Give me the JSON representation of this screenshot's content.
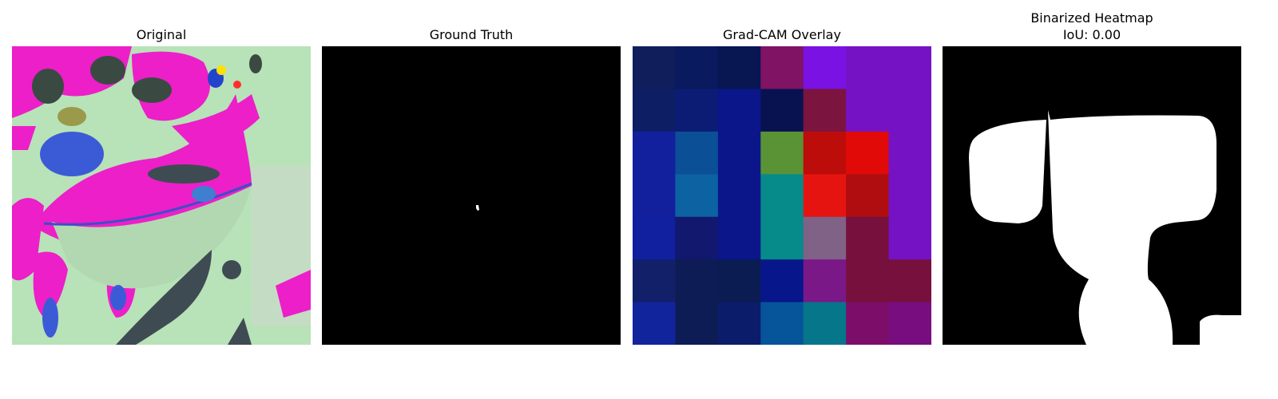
{
  "panels": [
    {
      "title": "Original"
    },
    {
      "title": "Ground Truth"
    },
    {
      "title": "Grad-CAM Overlay"
    },
    {
      "title": "Binarized Heatmap",
      "subtitle": "IoU: 0.00"
    }
  ],
  "colors": {
    "background": "#ffffff",
    "mask_background": "#000000",
    "mask_foreground": "#ffffff",
    "leaf_pink": "#ec1fc8",
    "leaf_pale_green": "#b8e2b8",
    "shadow_dark": "#3f4b52"
  },
  "gradcam_grid": [
    [
      "#101e5c",
      "#0a1a5e",
      "#081652",
      "#801363",
      "#7a12e3",
      "#7512c4",
      "#7512c4"
    ],
    [
      "#0e1e64",
      "#0c1c75",
      "#0a168a",
      "#081250",
      "#7c1440",
      "#7512c4",
      "#7512c4"
    ],
    [
      "#12209e",
      "#0b4f96",
      "#0a168a",
      "#5a9236",
      "#bc0d0a",
      "#e20a08",
      "#7512c4"
    ],
    [
      "#12209e",
      "#0d62a2",
      "#0a168a",
      "#078a8a",
      "#e61410",
      "#b00d10",
      "#7512c4"
    ],
    [
      "#10209e",
      "#12186e",
      "#0a168a",
      "#078a8a",
      "#806286",
      "#78103e",
      "#7512c4"
    ],
    [
      "#12206a",
      "#0e1c56",
      "#0b1c52",
      "#07168a",
      "#7a1888",
      "#78103e",
      "#78103e"
    ],
    [
      "#12249c",
      "#0e1c56",
      "#0b1c6a",
      "#06549a",
      "#06768a",
      "#7c0e6a",
      "#780d80"
    ]
  ]
}
